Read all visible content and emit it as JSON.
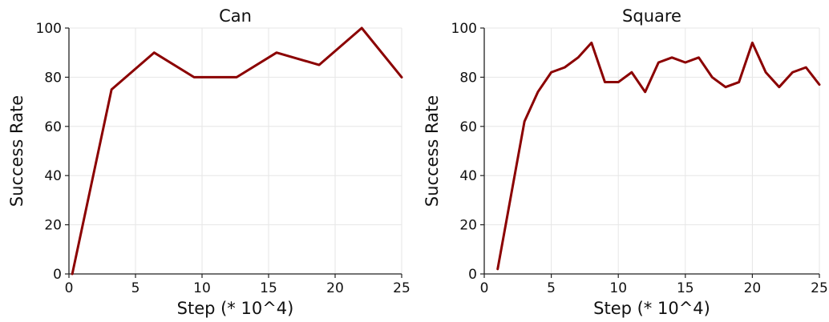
{
  "chart_data": [
    {
      "type": "line",
      "title": "Can",
      "xlabel": "Step (* 10^4)",
      "ylabel": "Success Rate",
      "xlim": [
        0,
        25
      ],
      "ylim": [
        0,
        100
      ],
      "xticks": [
        0,
        5,
        10,
        15,
        20,
        25
      ],
      "yticks": [
        0,
        20,
        40,
        60,
        80,
        100
      ],
      "grid": true,
      "color": "#8b0000",
      "series": [
        {
          "x": [
            0.25,
            3.2,
            6.4,
            9.4,
            12.6,
            15.6,
            18.8,
            22.0,
            25.0
          ],
          "values": [
            0,
            75,
            90,
            80,
            80,
            90,
            85,
            100,
            80
          ]
        }
      ]
    },
    {
      "type": "line",
      "title": "Square",
      "xlabel": "Step (* 10^4)",
      "ylabel": "Success Rate",
      "xlim": [
        0,
        25
      ],
      "ylim": [
        0,
        100
      ],
      "xticks": [
        0,
        5,
        10,
        15,
        20,
        25
      ],
      "yticks": [
        0,
        20,
        40,
        60,
        80,
        100
      ],
      "grid": true,
      "color": "#8b0000",
      "series": [
        {
          "x": [
            1,
            2,
            3,
            4,
            5,
            6,
            7,
            8,
            9,
            10,
            11,
            12,
            13,
            14,
            15,
            16,
            17,
            18,
            19,
            20,
            21,
            22,
            23,
            24,
            25
          ],
          "values": [
            2,
            32,
            62,
            74,
            82,
            84,
            88,
            94,
            78,
            78,
            82,
            74,
            86,
            88,
            86,
            88,
            80,
            76,
            78,
            94,
            82,
            76,
            82,
            84,
            77
          ]
        }
      ]
    }
  ]
}
